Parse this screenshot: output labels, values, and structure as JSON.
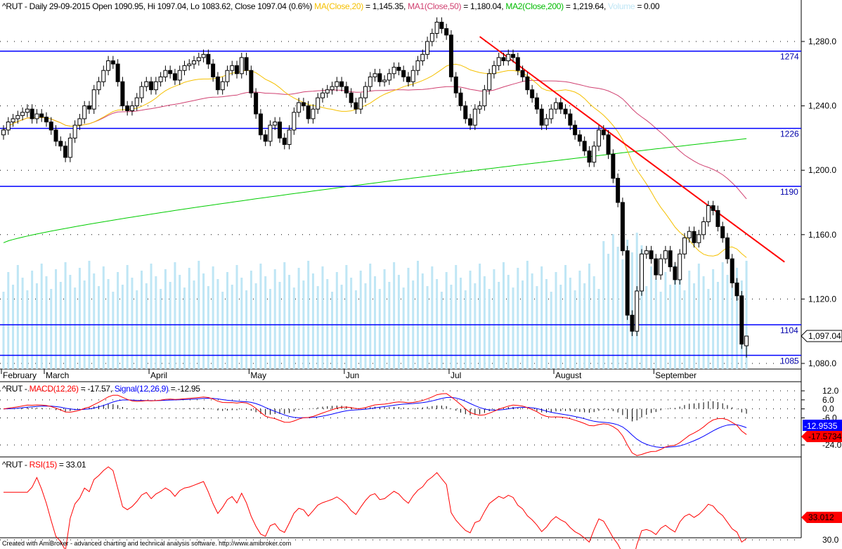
{
  "header": {
    "symbol": "^RUT",
    "text": " - Daily 29-09-2015 Open 1090.95, Hi 1097.04, Lo 1083.62, Close 1097.04 (0.6%) ",
    "ma20_label": "MA(Close,20)",
    "ma20_value": " = 1,145.35, ",
    "ma50_label": "MA1(Close,50)",
    "ma50_value": " = 1,180.04, ",
    "ma200_label": "MA2(Close,200)",
    "ma200_value": " = 1,219.64, ",
    "volume_label": "Volume",
    "volume_value": " = 0.00"
  },
  "macd_header": {
    "prefix": "^RUT - ",
    "macd_label": "MACD(12,26)",
    "macd_value": " = -17.57, ",
    "signal_label": "Signal(12,26,9)",
    "signal_value": " = -12.95"
  },
  "rsi_header": {
    "prefix": "^RUT - ",
    "rsi_label": "RSI(15)",
    "rsi_value": " = 33.01"
  },
  "footer": "Created with AmiBroker - advanced charting and technical analysis software. http://www.amibroker.com",
  "colors": {
    "ma20": "#f5c000",
    "ma50": "#d04070",
    "ma200": "#00cc00",
    "level": "#0000ff",
    "trend": "#ff0000",
    "volume": "#bfe6f5",
    "macd": "#ff0000",
    "signal": "#0000ff",
    "rsi": "#ff0000"
  },
  "chart_data": [
    {
      "type": "candlestick",
      "title": "^RUT Daily",
      "ylim": [
        1070,
        1300
      ],
      "yticks": [
        "1,280.0",
        "1,240.0",
        "1,200.0",
        "1,160.0",
        "1,120.0",
        "1,080.0"
      ],
      "ytick_values": [
        1280,
        1240,
        1200,
        1160,
        1120,
        1080
      ],
      "months": [
        "February",
        "March",
        "April",
        "May",
        "Jun",
        "Jul",
        "August",
        "September"
      ],
      "month_start_index": [
        0,
        9,
        31,
        52,
        72,
        94,
        116,
        137
      ],
      "close": [
        1225,
        1230,
        1232,
        1234,
        1236,
        1238,
        1232,
        1235,
        1233,
        1230,
        1225,
        1218,
        1215,
        1208,
        1220,
        1228,
        1232,
        1240,
        1238,
        1250,
        1255,
        1262,
        1268,
        1266,
        1255,
        1240,
        1237,
        1240,
        1245,
        1252,
        1255,
        1250,
        1255,
        1258,
        1262,
        1260,
        1256,
        1262,
        1265,
        1266,
        1268,
        1270,
        1272,
        1266,
        1258,
        1250,
        1255,
        1262,
        1265,
        1260,
        1270,
        1262,
        1248,
        1235,
        1222,
        1218,
        1228,
        1230,
        1220,
        1216,
        1225,
        1236,
        1242,
        1240,
        1232,
        1238,
        1245,
        1248,
        1250,
        1252,
        1255,
        1252,
        1248,
        1242,
        1238,
        1245,
        1252,
        1258,
        1260,
        1255,
        1256,
        1260,
        1264,
        1262,
        1258,
        1255,
        1262,
        1268,
        1272,
        1280,
        1285,
        1292,
        1288,
        1284,
        1258,
        1248,
        1240,
        1232,
        1228,
        1238,
        1240,
        1250,
        1260,
        1265,
        1270,
        1268,
        1272,
        1270,
        1262,
        1258,
        1250,
        1245,
        1238,
        1228,
        1232,
        1238,
        1242,
        1238,
        1235,
        1228,
        1222,
        1218,
        1212,
        1205,
        1215,
        1225,
        1222,
        1210,
        1195,
        1180,
        1150,
        1110,
        1100,
        1125,
        1148,
        1150,
        1145,
        1135,
        1145,
        1150,
        1140,
        1132,
        1148,
        1158,
        1162,
        1155,
        1160,
        1168,
        1178,
        1175,
        1165,
        1158,
        1145,
        1130,
        1122,
        1092,
        1097
      ],
      "last_open": 1090.95,
      "last_high": 1097.04,
      "last_low": 1083.62,
      "last_close": 1097.04,
      "last_close_label": "1,097.04",
      "ma200": {
        "start": 1155,
        "end": 1219.64
      },
      "levels": [
        {
          "value": 1274,
          "label": "1274"
        },
        {
          "value": 1226,
          "label": "1226"
        },
        {
          "value": 1190,
          "label": "1190"
        },
        {
          "value": 1104,
          "label": "1104"
        },
        {
          "value": 1085,
          "label": "1085"
        }
      ],
      "trendline": {
        "from": {
          "bar": 100,
          "value": 1283
        },
        "to": {
          "bar": 164,
          "value": 1143
        }
      }
    },
    {
      "type": "line",
      "title": "MACD",
      "ylim": [
        -30,
        16
      ],
      "yticks": [
        "12.0",
        "6.0",
        "0.0",
        "-6.0",
        "-24.0"
      ],
      "ytick_values": [
        12,
        6,
        0,
        -6,
        -24
      ],
      "signal_tag": "-12.9535",
      "macd_tag": "-17.5734"
    },
    {
      "type": "line",
      "title": "RSI",
      "ylim": [
        27,
        82
      ],
      "yticks": [
        "30.0"
      ],
      "ytick_values": [
        30
      ],
      "rsi_tag": "33.012"
    }
  ]
}
